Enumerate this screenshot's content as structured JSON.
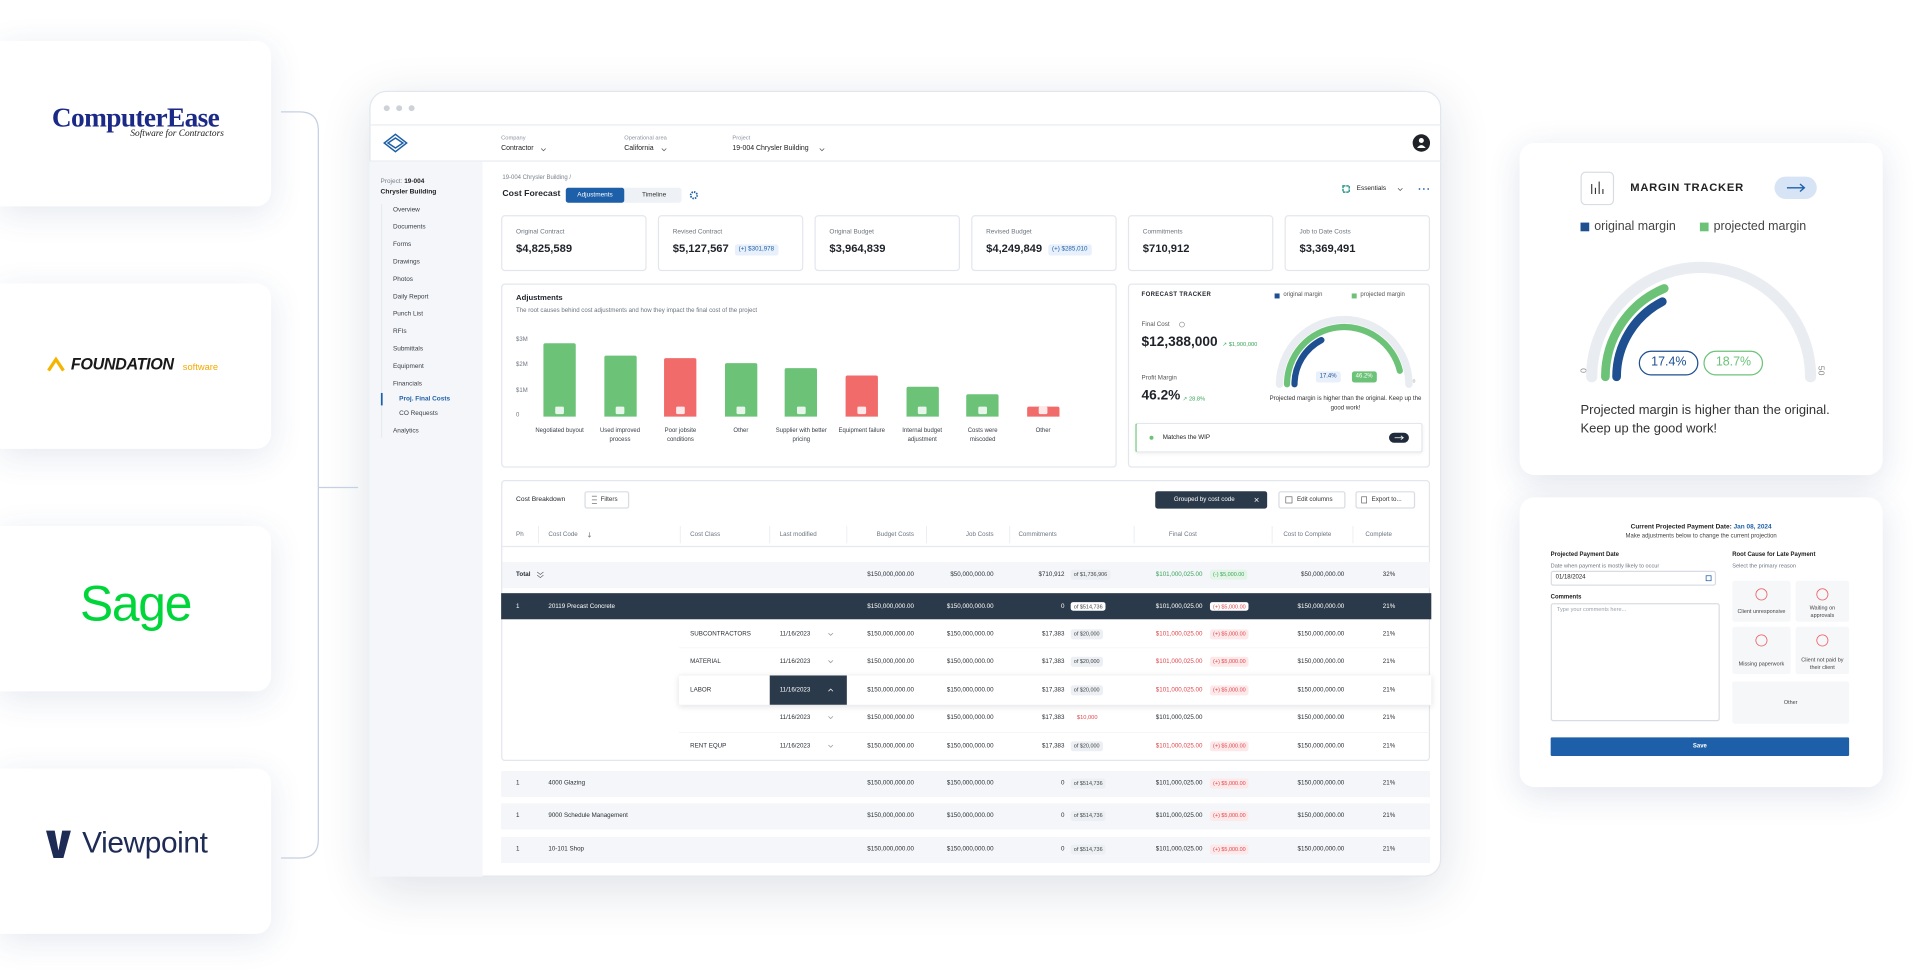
{
  "integrations": [
    {
      "name": "ComputerEase",
      "tagline": "Software for Contractors"
    },
    {
      "name": "FOUNDATION",
      "tagline": "software"
    },
    {
      "name": "Sage"
    },
    {
      "name": "Viewpoint"
    }
  ],
  "header": {
    "company_label": "Company",
    "company": "Contractor",
    "area_label": "Operational area",
    "area": "California",
    "project_label": "Project",
    "project": "19-004 Chrysler Building"
  },
  "sidebar": {
    "project_label": "Project:",
    "project_id": "19-004",
    "project_name": "Chrysler Building",
    "nav": [
      "Overview",
      "Documents",
      "Forms",
      "Drawings",
      "Photos",
      "Daily Report",
      "Punch List",
      "RFIs",
      "Submittals",
      "Equipment",
      "Financials"
    ],
    "financials_sub": [
      "Proj. Final Costs",
      "CO Requests"
    ],
    "nav_after": [
      "Analytics"
    ]
  },
  "page": {
    "breadcrumb": "19-004 Chrysler Building /",
    "title": "Cost Forecast",
    "tabs": [
      "Adjustments",
      "Timeline"
    ],
    "view": "Essentials"
  },
  "kpis": [
    {
      "label": "Original Contract",
      "value": "$4,825,589"
    },
    {
      "label": "Revised Contract",
      "value": "$5,127,567",
      "delta": "(+) $301,978"
    },
    {
      "label": "Original Budget",
      "value": "$3,964,839"
    },
    {
      "label": "Revised Budget",
      "value": "$4,249,849",
      "delta": "(+) $285,010"
    },
    {
      "label": "Commitments",
      "value": "$710,912"
    },
    {
      "label": "Job to Date Costs",
      "value": "$3,369,491"
    }
  ],
  "adjustments": {
    "type": "bar",
    "title": "Adjustments",
    "subtitle": "The root causes behind cost adjustments and how they impact the final cost of the project",
    "categories": [
      "Negotiated buyout",
      "Used improved process",
      "Poor jobsite conditions",
      "Other",
      "Supplier with better pricing",
      "Equipment failure",
      "Internal budget adjustment",
      "Costs were miscoded",
      "Other"
    ],
    "values": [
      2900000,
      2400000,
      2300000,
      2100000,
      1900000,
      1600000,
      1200000,
      900000,
      400000
    ],
    "colors": [
      "#6cc378",
      "#6cc378",
      "#f26b6b",
      "#6cc378",
      "#6cc378",
      "#f26b6b",
      "#6cc378",
      "#6cc378",
      "#f26b6b"
    ],
    "ylim": [
      0,
      3000000
    ],
    "yticks": [
      0,
      {
        "value": 1000000,
        "label": "$1M"
      },
      {
        "value": 2000000,
        "label": "$2M"
      },
      {
        "value": 3000000,
        "label": "$3M"
      }
    ]
  },
  "forecast_tracker": {
    "title": "FORECAST TRACKER",
    "legend": [
      "original margin",
      "projected margin"
    ],
    "final_cost_label": "Final Cost",
    "final_cost": "$12,388,000",
    "final_cost_change": "↗ $1,900,000",
    "profit_margin_label": "Profit Margin",
    "profit_margin": "46.2%",
    "profit_margin_change": "↗ 28.8%",
    "gauge": {
      "range": [
        0,
        50
      ],
      "values": [
        17.4,
        46.2
      ],
      "value_labels": [
        "17.4%",
        "46.2%"
      ],
      "colors": [
        "#1d4f91",
        "#6cc378"
      ]
    },
    "message": "Projected margin is higher than the original. Keep up the good work!",
    "wip": "Matches the WIP"
  },
  "margin_tracker": {
    "title": "MARGIN TRACKER",
    "legend": [
      "original margin",
      "projected margin"
    ],
    "gauge": {
      "range": [
        0,
        50
      ],
      "values": [
        17.4,
        18.7
      ],
      "value_labels": [
        "17.4%",
        "18.7%"
      ],
      "colors": [
        "#1d4f91",
        "#6cc378"
      ]
    },
    "message": "Projected margin is higher than the original. Keep up the good work!"
  },
  "cost_breakdown": {
    "title": "Cost Breakdown",
    "filters": "Filters",
    "grouped": "Grouped by cost code",
    "edit": "Edit columns",
    "export": "Export to...",
    "columns": [
      "Ph",
      "Cost Code",
      "Cost Class",
      "Last modified",
      "Budget Costs",
      "Job Costs",
      "Commitments",
      "Final Cost",
      "Cost to Complete",
      "Complete"
    ],
    "total": {
      "label": "Total",
      "budget": "$150,000,000.00",
      "job": "$50,000,000.00",
      "commit": "$710,912",
      "commit_of": "of $1,736,906",
      "final": "$101,000,025.00",
      "final_delta": "(-) $5,000.00",
      "ctc": "$50,000,000.00",
      "complete": "32%"
    },
    "expanded": {
      "ph": "1",
      "code": "20119 Precast Concrete",
      "budget": "$150,000,000.00",
      "job": "$150,000,000.00",
      "commit": "0",
      "commit_of": "of $514,736",
      "final": "$101,000,025.00",
      "final_delta": "(+) $5,000.00",
      "ctc": "$150,000,000.00",
      "complete": "21%"
    },
    "sub_rows": [
      {
        "cls": "SUBCONTRACTORS",
        "date": "11/16/2023",
        "budget": "$150,000,000.00",
        "job": "$150,000,000.00",
        "commit": "$17,383",
        "commit_of": "of $20,000",
        "final": "$101,000,025.00",
        "final_delta": "(+) $5,000.00",
        "ctc": "$150,000,000.00",
        "complete": "21%"
      },
      {
        "cls": "MATERIAL",
        "date": "11/16/2023",
        "budget": "$150,000,000.00",
        "job": "$150,000,000.00",
        "commit": "$17,383",
        "commit_of": "of $20,000",
        "final": "$101,000,025.00",
        "final_delta": "(+) $5,000.00",
        "ctc": "$150,000,000.00",
        "complete": "21%"
      },
      {
        "cls": "LABOR",
        "date": "11/16/2023",
        "budget": "$150,000,000.00",
        "job": "$150,000,000.00",
        "commit": "$17,383",
        "commit_of": "of $20,000",
        "final": "$101,000,025.00",
        "final_delta": "(+) $5,000.00",
        "ctc": "$150,000,000.00",
        "complete": "21%"
      },
      {
        "date": "11/16/2023",
        "budget": "$150,000,000.00",
        "job": "$150,000,000.00",
        "commit": "$17,383",
        "commit_over": "$10,000",
        "final": "$101,000,025.00",
        "ctc": "$150,000,000.00",
        "complete": "21%"
      },
      {
        "cls": "RENT EQUP",
        "date": "11/16/2023",
        "budget": "$150,000,000.00",
        "job": "$150,000,000.00",
        "commit": "$17,383",
        "commit_of": "of $20,000",
        "final": "$101,000,025.00",
        "final_delta": "(+) $5,000.00",
        "ctc": "$150,000,000.00",
        "complete": "21%"
      }
    ],
    "rows": [
      {
        "ph": "1",
        "code": "4000 Glazing",
        "budget": "$150,000,000.00",
        "job": "$150,000,000.00",
        "commit": "0",
        "commit_of": "of $514,736",
        "final": "$101,000,025.00",
        "final_delta": "(+) $5,000.00",
        "ctc": "$150,000,000.00",
        "complete": "21%"
      },
      {
        "ph": "1",
        "code": "9000 Schedule Management",
        "budget": "$150,000,000.00",
        "job": "$150,000,000.00",
        "commit": "0",
        "commit_of": "of $514,736",
        "final": "$101,000,025.00",
        "final_delta": "(+) $5,000.00",
        "ctc": "$150,000,000.00",
        "complete": "21%"
      },
      {
        "ph": "1",
        "code": "10-101 Shop",
        "budget": "$150,000,000.00",
        "job": "$150,000,000.00",
        "commit": "0",
        "commit_of": "of $514,736",
        "final": "$101,000,025.00",
        "final_delta": "(+) $5,000.00",
        "ctc": "$150,000,000.00",
        "complete": "21%"
      }
    ]
  },
  "payment": {
    "title": "Current Projected Payment Date:",
    "date": "Jan 08, 2024",
    "subtitle": "Make adjustments below to change the current projection",
    "date_label": "Projected Payment Date",
    "date_hint": "Date when payment is mostly likely to occur",
    "date_value": "01/18/2024",
    "cause_label": "Root Cause for Late Payment",
    "cause_hint": "Select the primary reason",
    "comments_label": "Comments",
    "comments_placeholder": "Type your comments here...",
    "reasons": [
      "Client unresponsive",
      "Waiting on approvals",
      "Missing paperwork",
      "Client not paid by their client",
      "Other"
    ],
    "save": "Save"
  }
}
